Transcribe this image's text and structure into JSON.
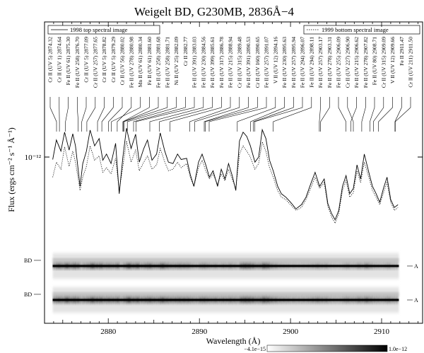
{
  "chart_data": {
    "type": "line",
    "title": "Weigelt BD, G230MB, 2836Å−4",
    "xlabel": "Wavelength (Å)",
    "ylabel": "Flux (ergs cm⁻² s⁻¹ Å⁻¹)",
    "xlim": [
      2873.0,
      2914.5
    ],
    "x_ticks": [
      2880,
      2890,
      2900,
      2910
    ],
    "y_scale": "log",
    "y_tick_label": "10⁻¹²",
    "legend": {
      "placement": "top",
      "entries": [
        "1998 top spectral image",
        "1999 bottom spectral image"
      ]
    },
    "series": [
      {
        "name": "1998 top spectral image",
        "style": "solid",
        "x": [
          2873.9,
          2874.3,
          2874.8,
          2875.2,
          2875.7,
          2876.1,
          2876.4,
          2876.9,
          2877.2,
          2877.6,
          2878.0,
          2878.5,
          2879.0,
          2879.4,
          2879.8,
          2880.3,
          2880.8,
          2881.2,
          2881.6,
          2882.0,
          2882.5,
          2883.0,
          2883.4,
          2883.9,
          2884.3,
          2884.8,
          2885.3,
          2885.7,
          2886.2,
          2886.6,
          2887.1,
          2887.6,
          2888.0,
          2888.6,
          2889.0,
          2889.4,
          2889.9,
          2890.3,
          2890.7,
          2891.1,
          2891.5,
          2892.0,
          2892.4,
          2892.8,
          2893.2,
          2893.6,
          2894.0,
          2894.4,
          2894.8,
          2895.2,
          2895.6,
          2896.1,
          2896.5,
          2896.9,
          2897.3,
          2897.7,
          2898.1,
          2898.6,
          2899.0,
          2899.5,
          2900.0,
          2900.6,
          2901.2,
          2901.7,
          2902.2,
          2902.7,
          2903.2,
          2903.7,
          2904.1,
          2904.5,
          2904.9,
          2905.3,
          2905.7,
          2906.1,
          2906.5,
          2906.9,
          2907.3,
          2907.7,
          2908.1,
          2908.6,
          2909.0,
          2909.4,
          2909.8,
          2910.2,
          2910.6,
          2911.0,
          2911.4,
          2911.8
        ],
        "y": [
          0.96,
          1.32,
          1.1,
          1.5,
          1.12,
          1.46,
          1.2,
          0.62,
          0.9,
          1.1,
          1.55,
          1.2,
          1.35,
          0.95,
          1.05,
          0.9,
          1.25,
          0.55,
          1.0,
          1.6,
          1.15,
          1.45,
          0.92,
          1.15,
          1.32,
          0.95,
          1.05,
          1.48,
          1.1,
          0.92,
          0.9,
          1.05,
          0.96,
          0.98,
          0.75,
          0.62,
          0.92,
          1.05,
          0.88,
          0.72,
          0.8,
          0.62,
          0.82,
          0.7,
          0.9,
          0.74,
          0.58,
          1.3,
          1.5,
          1.4,
          1.2,
          0.92,
          1.0,
          1.56,
          1.35,
          0.95,
          0.8,
          0.62,
          0.55,
          0.52,
          0.48,
          0.43,
          0.46,
          0.52,
          0.64,
          0.78,
          0.62,
          0.7,
          0.47,
          0.4,
          0.36,
          0.42,
          0.62,
          0.74,
          0.55,
          0.6,
          0.88,
          0.7,
          1.05,
          0.78,
          0.62,
          0.55,
          0.48,
          0.6,
          0.72,
          0.5,
          0.44,
          0.46
        ]
      },
      {
        "name": "1999 bottom spectral image",
        "style": "dotted",
        "x": [
          2873.9,
          2874.3,
          2874.8,
          2875.2,
          2875.7,
          2876.1,
          2876.4,
          2876.9,
          2877.2,
          2877.6,
          2878.0,
          2878.5,
          2879.0,
          2879.4,
          2879.8,
          2880.3,
          2880.8,
          2881.2,
          2881.6,
          2882.0,
          2882.5,
          2883.0,
          2883.4,
          2883.9,
          2884.3,
          2884.8,
          2885.3,
          2885.7,
          2886.2,
          2886.6,
          2887.1,
          2887.6,
          2888.0,
          2888.6,
          2889.0,
          2889.4,
          2889.9,
          2890.3,
          2890.7,
          2891.1,
          2891.5,
          2892.0,
          2892.4,
          2892.8,
          2893.2,
          2893.6,
          2894.0,
          2894.4,
          2894.8,
          2895.2,
          2895.6,
          2896.1,
          2896.5,
          2896.9,
          2897.3,
          2897.7,
          2898.1,
          2898.6,
          2899.0,
          2899.5,
          2900.0,
          2900.6,
          2901.2,
          2901.7,
          2902.2,
          2902.7,
          2903.2,
          2903.7,
          2904.1,
          2904.5,
          2904.9,
          2905.3,
          2905.7,
          2906.1,
          2906.5,
          2906.9,
          2907.3,
          2907.7,
          2908.1,
          2908.6,
          2909.0,
          2909.4,
          2909.8,
          2910.2,
          2910.6,
          2911.0,
          2911.4,
          2911.8
        ],
        "y": [
          0.72,
          0.92,
          0.82,
          1.18,
          0.86,
          1.1,
          0.92,
          0.58,
          0.72,
          0.86,
          1.2,
          0.95,
          1.02,
          0.78,
          0.84,
          0.76,
          0.98,
          0.58,
          0.86,
          1.3,
          0.92,
          1.12,
          0.8,
          0.92,
          1.02,
          0.82,
          0.88,
          1.15,
          0.92,
          0.8,
          0.82,
          0.92,
          0.84,
          0.9,
          0.72,
          0.62,
          0.84,
          0.95,
          0.8,
          0.7,
          0.76,
          0.64,
          0.76,
          0.68,
          0.82,
          0.7,
          0.6,
          1.05,
          1.2,
          1.1,
          1.0,
          0.82,
          0.9,
          1.28,
          1.1,
          0.84,
          0.72,
          0.58,
          0.52,
          0.5,
          0.46,
          0.42,
          0.44,
          0.5,
          0.6,
          0.72,
          0.6,
          0.66,
          0.45,
          0.38,
          0.34,
          0.4,
          0.58,
          0.68,
          0.52,
          0.56,
          0.8,
          0.66,
          0.92,
          0.72,
          0.58,
          0.52,
          0.46,
          0.56,
          0.66,
          0.48,
          0.42,
          0.44
        ]
      }
    ],
    "line_ids": [
      {
        "label": "Cr II (UV 5) 2874.32",
        "wl": 2874.32
      },
      {
        "label": "Cr II (UV 1) 2874.64",
        "wl": 2874.64
      },
      {
        "label": "Fe II (UV 61) 2875.30",
        "wl": 2875.3
      },
      {
        "label": "Fe II (UV 258) 2876.70",
        "wl": 2876.7
      },
      {
        "label": "Cr II (UV 5) 2877.09",
        "wl": 2877.09
      },
      {
        "label": "Cr II (UV 257) 2877.65",
        "wl": 2877.65
      },
      {
        "label": "Cr II (UV 5) 2878.82",
        "wl": 2878.82
      },
      {
        "label": "Cr II (UV 5) 2879.29",
        "wl": 2879.29
      },
      {
        "label": "Cr II (UV 56) 2880.02",
        "wl": 2880.02
      },
      {
        "label": "Fe II (UV 278) 2880.98",
        "wl": 2880.98
      },
      {
        "label": "Mn II (UV 61) 2880.34",
        "wl": 2880.34
      },
      {
        "label": "Fe II (UV 61) 2881.60",
        "wl": 2881.6
      },
      {
        "label": "Fe II (UV 258) 2881.68",
        "wl": 2881.68
      },
      {
        "label": "Fe II (UV 258) 2881.71",
        "wl": 2881.71
      },
      {
        "label": "Ni II (UV 25) 2882.09",
        "wl": 2882.09
      },
      {
        "label": "Cr II 2882.77",
        "wl": 2882.77
      },
      {
        "label": "Fe II (UV 391) 2883.03",
        "wl": 2883.03
      },
      {
        "label": "Fe II (UV 230) 2884.56",
        "wl": 2884.56
      },
      {
        "label": "Fe II (UV 399) 2885.61",
        "wl": 2885.61
      },
      {
        "label": "Fe II (UV 317) 2886.78",
        "wl": 2886.78
      },
      {
        "label": "Fe II (UV 215) 2888.94",
        "wl": 2888.94
      },
      {
        "label": "Cr II (UV 315) 2889.48",
        "wl": 2889.48
      },
      {
        "label": "Fe II (UV 391) 2890.53",
        "wl": 2890.53
      },
      {
        "label": "Cr II (UV 160) 2890.65",
        "wl": 2890.65
      },
      {
        "label": "Fe II (UV 257) 2891.07",
        "wl": 2891.07
      },
      {
        "label": "V II (UV 12) 2894.16",
        "wl": 2894.16
      },
      {
        "label": "Fe II (UV 230) 2895.63",
        "wl": 2895.63
      },
      {
        "label": "Fe II (UV 257) 2895.94",
        "wl": 2895.94
      },
      {
        "label": "Fe II (UV 294) 2896.07",
        "wl": 2896.07
      },
      {
        "label": "Fe II (UV 294) 2898.11",
        "wl": 2898.11
      },
      {
        "label": "Fe II (UV 257) 2903.17",
        "wl": 2903.17
      },
      {
        "label": "Fe II (UV 278) 2903.31",
        "wl": 2903.31
      },
      {
        "label": "Fe II (UV 255) 2906.09",
        "wl": 2906.09
      },
      {
        "label": "Cr II (UV 227) 2906.90",
        "wl": 2906.9
      },
      {
        "label": "Fe II (UV 215) 2906.62",
        "wl": 2906.62
      },
      {
        "label": "Fe II (UV 278) 2907.82",
        "wl": 2907.82
      },
      {
        "label": "Fe II (UV 80) 2908.71",
        "wl": 2908.71
      },
      {
        "label": "Cr II (UV 315) 2909.09",
        "wl": 2909.09
      },
      {
        "label": "V II (UV 12) 2909.66",
        "wl": 2909.66
      },
      {
        "label": "Fe II 2911.47",
        "wl": 2911.47
      },
      {
        "label": "Cr II (UV 211) 2911.50",
        "wl": 2911.5
      }
    ],
    "images": {
      "left_labels": [
        "BD",
        "BD"
      ],
      "right_labels": [
        "A",
        "A"
      ]
    },
    "colorbar": {
      "min_label": "−4.1e−15",
      "max_label": "1.0e−12"
    }
  },
  "colors": {
    "ink": "#000000",
    "background": "#ffffff"
  }
}
